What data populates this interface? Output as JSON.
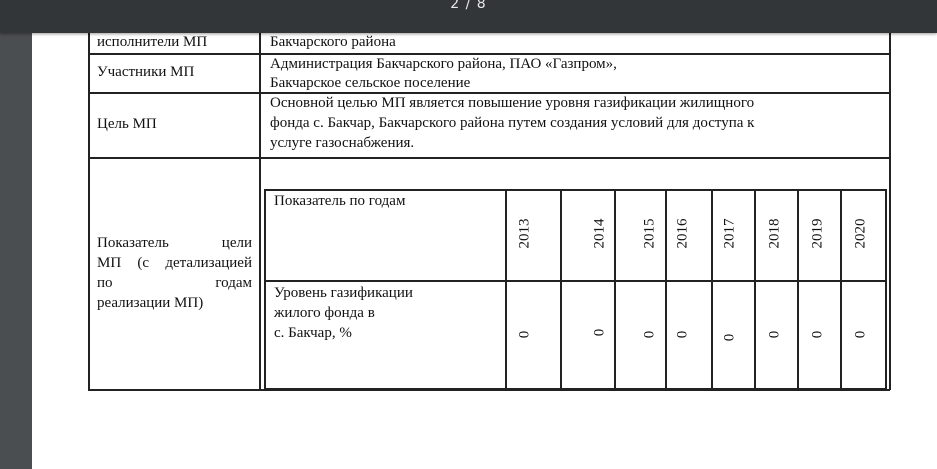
{
  "viewer": {
    "page_indicator": "2 / 8"
  },
  "table": {
    "rows": [
      {
        "label": "исполнители МП",
        "value_lines": [
          "Бакчарского района"
        ]
      },
      {
        "label": "Участники МП",
        "value_lines": [
          "Администрация Бакчарского  района, ПАО «Газпром»,",
          "Бакчарское сельское поселение"
        ]
      },
      {
        "label": "Цель  МП",
        "value_lines": [
          "Основной целью  МП является повышение уровня газификации жилищного",
          "фонда с. Бакчар, Бакчарского района    путем создания условий для  доступа к",
          "услуге газоснабжения."
        ]
      },
      {
        "label_lines": [
          "Показатель цели",
          "МП (с детализацией",
          "по годам",
          "реализации МП)"
        ]
      }
    ],
    "indicator": {
      "header_label": "Показатель по годам",
      "years": [
        "2013",
        "2014",
        "2015",
        "2016",
        "2017",
        "2018",
        "2019",
        "2020"
      ],
      "row_label_lines": [
        "Уровень  газификации",
        "жилого фонда в",
        "с. Бакчар, %"
      ],
      "values": [
        "0",
        "0",
        "0",
        "0",
        "0",
        "0",
        "0",
        "0"
      ]
    }
  }
}
